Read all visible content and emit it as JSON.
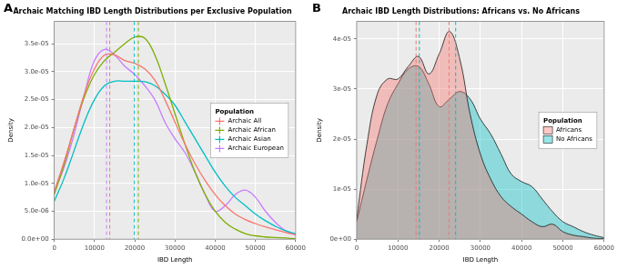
{
  "chart_data": [
    {
      "type": "line",
      "panel": "A",
      "title": "Archaic Matching IBD Length Distributions per Exclusive Population",
      "x_label": "IBD Length",
      "y_label": "Density",
      "x": [
        0,
        2500,
        5000,
        7500,
        10000,
        12500,
        15000,
        17500,
        20000,
        22500,
        25000,
        27500,
        30000,
        32500,
        35000,
        37500,
        40000,
        42500,
        45000,
        47500,
        50000,
        52500,
        55000,
        57500,
        60000
      ],
      "series": [
        {
          "name": "Archaic All",
          "color": "#f8766d",
          "reference_lines": [
            13800
          ],
          "values": [
            8.5e-06,
            1.4e-05,
            2e-05,
            2.6e-05,
            3.05e-05,
            3.3e-05,
            3.3e-05,
            3.2e-05,
            3.15e-05,
            3.05e-05,
            2.85e-05,
            2.5e-05,
            2.1e-05,
            1.7e-05,
            1.35e-05,
            1.05e-05,
            8e-06,
            6e-06,
            4.5e-06,
            3.5e-06,
            2.8e-06,
            2.2e-06,
            1.7e-06,
            1.2e-06,
            8e-07
          ]
        },
        {
          "name": "Archaic African",
          "color": "#7cae00",
          "reference_lines": [
            20900
          ],
          "values": [
            8e-06,
            1.35e-05,
            2e-05,
            2.55e-05,
            2.95e-05,
            3.2e-05,
            3.35e-05,
            3.5e-05,
            3.62e-05,
            3.6e-05,
            3.3e-05,
            2.8e-05,
            2.25e-05,
            1.7e-05,
            1.2e-05,
            8e-06,
            5e-06,
            3e-06,
            1.8e-06,
            1e-06,
            6e-07,
            4e-07,
            3e-07,
            2e-07,
            1e-07
          ]
        },
        {
          "name": "Archaic Asian",
          "color": "#00bfc4",
          "reference_lines": [
            19900
          ],
          "values": [
            6.8e-06,
            1.1e-05,
            1.6e-05,
            2.1e-05,
            2.5e-05,
            2.75e-05,
            2.83e-05,
            2.83e-05,
            2.83e-05,
            2.82e-05,
            2.75e-05,
            2.6e-05,
            2.4e-05,
            2.1e-05,
            1.8e-05,
            1.5e-05,
            1.2e-05,
            9.5e-06,
            7.5e-06,
            6e-06,
            4.5e-06,
            3.3e-06,
            2.3e-06,
            1.5e-06,
            1e-06
          ]
        },
        {
          "name": "Archaic European",
          "color": "#c77cff",
          "reference_lines": [
            13000
          ],
          "values": [
            8.5e-06,
            1.3e-05,
            1.9e-05,
            2.6e-05,
            3.2e-05,
            3.4e-05,
            3.3e-05,
            3.1e-05,
            2.95e-05,
            2.75e-05,
            2.5e-05,
            2.1e-05,
            1.8e-05,
            1.55e-05,
            1.2e-05,
            8e-06,
            5e-06,
            6e-06,
            8e-06,
            8.8e-06,
            7.5e-06,
            5e-06,
            3e-06,
            1.5e-06,
            8e-07
          ]
        }
      ],
      "xlim": [
        0,
        60000
      ],
      "xticks": [
        0,
        10000,
        20000,
        30000,
        40000,
        50000,
        60000
      ],
      "ylim": [
        0,
        3.9e-05
      ],
      "yticks": [
        {
          "value": 0,
          "label": "0.0e+00"
        },
        {
          "value": 5e-06,
          "label": "5.0e-06"
        },
        {
          "value": 1e-05,
          "label": "1.0e-05"
        },
        {
          "value": 1.5e-05,
          "label": "1.5e-05"
        },
        {
          "value": 2e-05,
          "label": "2.0e-05"
        },
        {
          "value": 2.5e-05,
          "label": "2.5e-05"
        },
        {
          "value": 3e-05,
          "label": "3.0e-05"
        },
        {
          "value": 3.5e-05,
          "label": "3.5e-05"
        }
      ],
      "grid": true,
      "legend": "right",
      "legend_title": "Population"
    },
    {
      "type": "area",
      "panel": "B",
      "title": "Archaic IBD Length Distributions: Africans vs. No Africans",
      "x_label": "IBD Length",
      "y_label": "Density",
      "x": [
        0,
        2500,
        5000,
        7500,
        10000,
        12500,
        15000,
        17500,
        20000,
        22500,
        25000,
        27500,
        30000,
        32500,
        35000,
        37500,
        40000,
        42500,
        45000,
        47500,
        50000,
        52500,
        55000,
        57500,
        60000
      ],
      "series": [
        {
          "name": "Africans",
          "color": "#f8766d",
          "reference_lines": [
            14400,
            22400
          ],
          "values": [
            4e-06,
            1.9e-05,
            2.9e-05,
            3.2e-05,
            3.2e-05,
            3.45e-05,
            3.65e-05,
            3.3e-05,
            3.7e-05,
            4.15e-05,
            3.6e-05,
            2.5e-05,
            1.7e-05,
            1.2e-05,
            8.5e-06,
            6.5e-06,
            5e-06,
            3.5e-06,
            2.5e-06,
            3e-06,
            1.5e-06,
            8e-07,
            5e-07,
            2e-07,
            1e-07
          ]
        },
        {
          "name": "No Africans",
          "color": "#00bfc4",
          "reference_lines": [
            15200,
            24000
          ],
          "values": [
            3.5e-06,
            1.2e-05,
            2e-05,
            2.7e-05,
            3.1e-05,
            3.4e-05,
            3.45e-05,
            3.1e-05,
            2.65e-05,
            2.8e-05,
            2.95e-05,
            2.8e-05,
            2.4e-05,
            2.1e-05,
            1.7e-05,
            1.3e-05,
            1.15e-05,
            1.05e-05,
            8e-06,
            5.5e-06,
            3.5e-06,
            2.5e-06,
            1.5e-06,
            8e-07,
            3e-07
          ]
        }
      ],
      "xlim": [
        0,
        60000
      ],
      "xticks": [
        0,
        10000,
        20000,
        30000,
        40000,
        50000,
        60000
      ],
      "ylim": [
        0,
        4.35e-05
      ],
      "yticks": [
        {
          "value": 0,
          "label": "0e+00"
        },
        {
          "value": 1e-05,
          "label": "1e-05"
        },
        {
          "value": 2e-05,
          "label": "2e-05"
        },
        {
          "value": 3e-05,
          "label": "3e-05"
        },
        {
          "value": 4e-05,
          "label": "4e-05"
        }
      ],
      "grid": true,
      "legend": "right",
      "legend_title": "Population"
    }
  ]
}
